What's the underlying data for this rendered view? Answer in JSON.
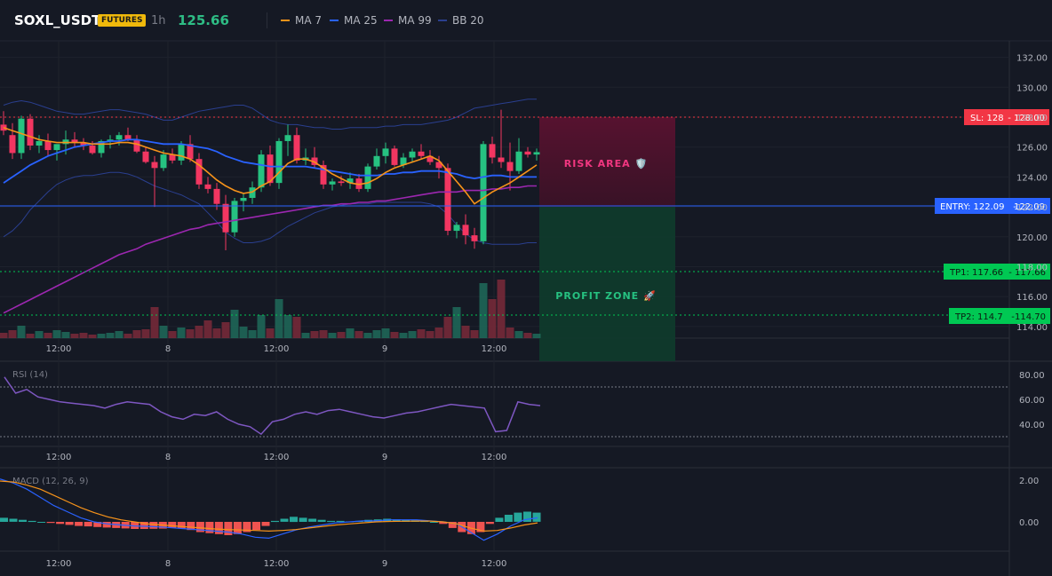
{
  "header": {
    "symbol": "SOXL_USDT",
    "badge": "FUTURES",
    "timeframe": "1h",
    "last_price": "125.66",
    "legend": [
      {
        "label": "MA 7",
        "color": "#f7931a"
      },
      {
        "label": "MA 25",
        "color": "#2962ff"
      },
      {
        "label": "MA 99",
        "color": "#9c27b0"
      },
      {
        "label": "BB 20",
        "color": "#2a3f8f"
      }
    ]
  },
  "price_axis": {
    "ticks": [
      "132.00",
      "130.00",
      "128.00",
      "126.00",
      "124.00",
      "122.00",
      "120.00",
      "118.00",
      "116.00",
      "114.00"
    ]
  },
  "time_axis": {
    "labels": [
      "12:00",
      "8",
      "12:00",
      "9",
      "12:00"
    ]
  },
  "levels": {
    "sl": {
      "label": "SL: 128",
      "value": "128.00",
      "color": "#f23645"
    },
    "entry": {
      "label": "ENTRY: 122.09",
      "value": "122.09",
      "color": "#2962ff"
    },
    "tp1": {
      "label": "TP1: 117.66",
      "value": "117.66",
      "color": "#00c853"
    },
    "tp2": {
      "label": "TP2: 114.7",
      "value": "114.70",
      "color": "#00c853"
    }
  },
  "zones": {
    "risk": "RISK AREA 🛡️",
    "profit": "PROFIT ZONE 🚀"
  },
  "rsi": {
    "title": "RSI (14)",
    "ticks": [
      "80.00",
      "60.00",
      "40.00"
    ],
    "color": "#7e57c2",
    "values": [
      78,
      65,
      68,
      62,
      60,
      58,
      57,
      56,
      55,
      53,
      56,
      58,
      57,
      56,
      50,
      46,
      44,
      48,
      47,
      50,
      44,
      40,
      38,
      32,
      42,
      44,
      48,
      50,
      48,
      51,
      52,
      50,
      48,
      46,
      45,
      47,
      49,
      50,
      52,
      54,
      56,
      55,
      54,
      53,
      34,
      35,
      58,
      56,
      55
    ]
  },
  "macd": {
    "title": "MACD (12, 26, 9)",
    "ticks": [
      "2.00",
      "0.00"
    ]
  }
}
